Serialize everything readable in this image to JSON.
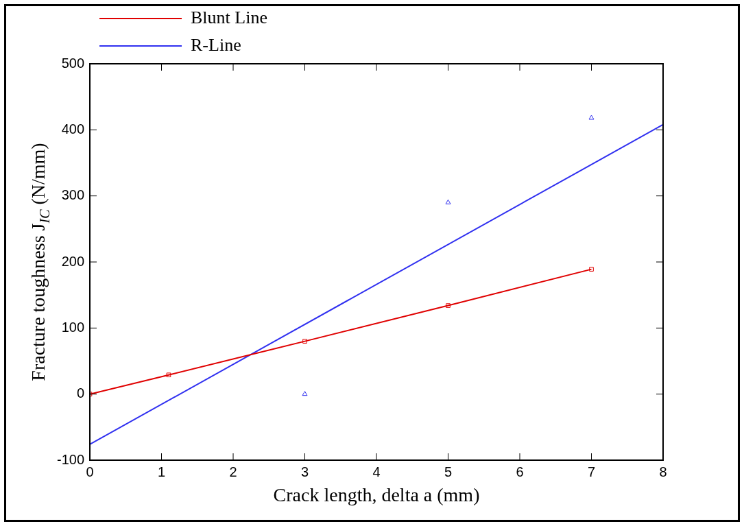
{
  "chart_data": {
    "type": "line",
    "xlabel": "Crack length, delta a (mm)",
    "ylabel": "Fracture toughness J$_{IC}$ (N/mm)",
    "xlim": [
      0,
      8
    ],
    "xticks": [
      0,
      1,
      2,
      3,
      4,
      5,
      6,
      7,
      8
    ],
    "ylim": [
      -100,
      500
    ],
    "yticks": [
      -100,
      0,
      100,
      200,
      300,
      400,
      500
    ],
    "grid": false,
    "legend": "top left",
    "line_style": "solid",
    "series": [
      {
        "name": "Blunt Line",
        "color": "#e00000",
        "marker": "square",
        "x": [
          0,
          1.1,
          3,
          5,
          7
        ],
        "values": [
          0,
          29,
          80,
          134,
          189
        ]
      },
      {
        "name": "R-Line",
        "color": "#3030f0",
        "marker": "none",
        "x": [
          0,
          8
        ],
        "values": [
          -76,
          408
        ]
      },
      {
        "type": "scatter",
        "color": "#3030f0",
        "marker": "triangle",
        "x": [
          3,
          5,
          7
        ],
        "values": [
          0,
          290,
          418
        ]
      }
    ]
  }
}
